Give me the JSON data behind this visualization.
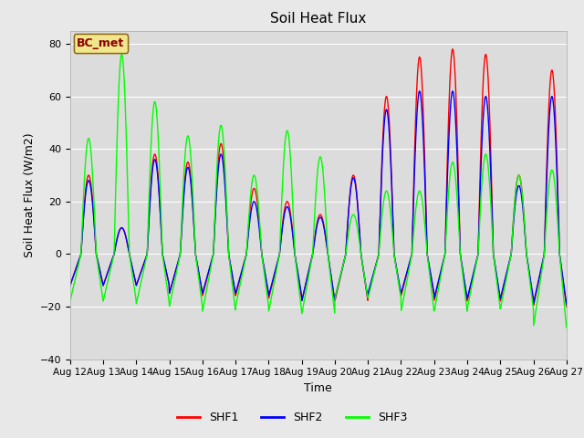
{
  "title": "Soil Heat Flux",
  "xlabel": "Time",
  "ylabel": "Soil Heat Flux (W/m2)",
  "ylim": [
    -40,
    85
  ],
  "yticks": [
    -40,
    -20,
    0,
    20,
    40,
    60,
    80
  ],
  "fig_bg_color": "#e8e8e8",
  "plot_bg_color": "#dcdcdc",
  "legend_label": "BC_met",
  "legend_bg": "#f0e68c",
  "legend_edge": "#8B6914",
  "legend_text_color": "#8B0000",
  "series_colors": [
    "red",
    "blue",
    "lime"
  ],
  "series_names": [
    "SHF1",
    "SHF2",
    "SHF3"
  ],
  "date_labels": [
    "Aug 12",
    "Aug 13",
    "Aug 14",
    "Aug 15",
    "Aug 16",
    "Aug 17",
    "Aug 18",
    "Aug 19",
    "Aug 20",
    "Aug 21",
    "Aug 22",
    "Aug 23",
    "Aug 24",
    "Aug 25",
    "Aug 26",
    "Aug 27"
  ],
  "n_days": 16,
  "points_per_day": 96,
  "shf1_peaks": [
    30,
    10,
    38,
    35,
    42,
    25,
    20,
    15,
    30,
    60,
    75,
    78,
    76,
    30,
    70
  ],
  "shf1_night": [
    -12,
    -12,
    -12,
    -15,
    -16,
    -16,
    -17,
    -18,
    -18,
    -16,
    -16,
    -18,
    -18,
    -18,
    -20
  ],
  "shf2_peaks": [
    28,
    10,
    36,
    33,
    38,
    20,
    18,
    14,
    29,
    55,
    62,
    62,
    60,
    26,
    60
  ],
  "shf2_night": [
    -12,
    -12,
    -12,
    -15,
    -15,
    -15,
    -16,
    -18,
    -17,
    -15,
    -15,
    -17,
    -17,
    -17,
    -19
  ],
  "shf3_peaks": [
    44,
    76,
    58,
    45,
    49,
    30,
    47,
    37,
    15,
    24,
    24,
    35,
    38,
    30,
    32
  ],
  "shf3_night": [
    -18,
    -18,
    -19,
    -20,
    -22,
    -20,
    -22,
    -23,
    -17,
    -17,
    -22,
    -22,
    -21,
    -21,
    -28
  ]
}
